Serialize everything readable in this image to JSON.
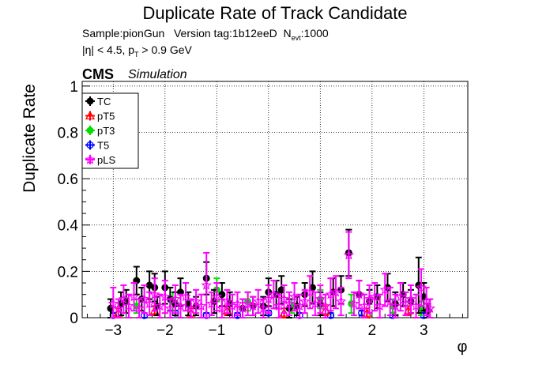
{
  "header": {
    "title": "Duplicate Rate of Track Candidate",
    "sample_line": {
      "sample": "Sample:pionGun",
      "version": "Version tag:1b12eeD",
      "nevt_label": "N",
      "nevt_sub": "evt",
      "nevt_value": ":1000"
    },
    "cut_line": {
      "eta_cut": "|η| < 4.5, p",
      "pt_sub": "T",
      "pt_cut": " > 0.9 GeV"
    },
    "cms": "CMS",
    "simulation": "Simulation"
  },
  "chart_data": {
    "type": "scatter",
    "title": "Duplicate Rate of Track Candidate",
    "xlabel": "φ",
    "ylabel": "Duplicate Rate",
    "xlim": [
      -3.6,
      3.85
    ],
    "ylim": [
      0,
      1.02
    ],
    "xticks": [
      -3,
      -2,
      -1,
      0,
      1,
      2,
      3
    ],
    "xtick_labels": [
      "−3",
      "−2",
      "−1",
      "0",
      "1",
      "2",
      "3"
    ],
    "yticks": [
      0,
      0.2,
      0.4,
      0.6,
      0.8,
      1
    ],
    "ytick_labels": [
      "0",
      "0.2",
      "0.4",
      "0.6",
      "0.8",
      "1"
    ],
    "grid": true,
    "legend_position": "top-left",
    "series": [
      {
        "name": "TC",
        "color": "#000000",
        "marker": "circle-filled",
        "points": [
          {
            "x": -3.05,
            "y": 0.04,
            "err": 0.04
          },
          {
            "x": -2.85,
            "y": 0.06,
            "err": 0.05
          },
          {
            "x": -2.75,
            "y": 0.07,
            "err": 0.05
          },
          {
            "x": -2.55,
            "y": 0.16,
            "err": 0.06
          },
          {
            "x": -2.45,
            "y": 0.08,
            "err": 0.05
          },
          {
            "x": -2.3,
            "y": 0.14,
            "err": 0.06
          },
          {
            "x": -2.2,
            "y": 0.13,
            "err": 0.06
          },
          {
            "x": -2.15,
            "y": 0.05,
            "err": 0.04
          },
          {
            "x": -2.0,
            "y": 0.13,
            "err": 0.07
          },
          {
            "x": -1.9,
            "y": 0.08,
            "err": 0.05
          },
          {
            "x": -1.8,
            "y": 0.06,
            "err": 0.05
          },
          {
            "x": -1.7,
            "y": 0.11,
            "err": 0.06
          },
          {
            "x": -1.55,
            "y": 0.06,
            "err": 0.05
          },
          {
            "x": -1.4,
            "y": 0.05,
            "err": 0.04
          },
          {
            "x": -1.2,
            "y": 0.17,
            "err": 0.07
          },
          {
            "x": -1.05,
            "y": 0.07,
            "err": 0.05
          },
          {
            "x": -0.9,
            "y": 0.1,
            "err": 0.05
          },
          {
            "x": -0.75,
            "y": 0.06,
            "err": 0.05
          },
          {
            "x": -0.5,
            "y": 0.04,
            "err": 0.04
          },
          {
            "x": -0.3,
            "y": 0.05,
            "err": 0.04
          },
          {
            "x": -0.1,
            "y": 0.05,
            "err": 0.04
          },
          {
            "x": 0.0,
            "y": 0.11,
            "err": 0.06
          },
          {
            "x": 0.15,
            "y": 0.1,
            "err": 0.06
          },
          {
            "x": 0.25,
            "y": 0.12,
            "err": 0.06
          },
          {
            "x": 0.4,
            "y": 0.04,
            "err": 0.04
          },
          {
            "x": 0.55,
            "y": 0.05,
            "err": 0.04
          },
          {
            "x": 0.7,
            "y": 0.1,
            "err": 0.05
          },
          {
            "x": 0.85,
            "y": 0.13,
            "err": 0.07
          },
          {
            "x": 1.0,
            "y": 0.06,
            "err": 0.05
          },
          {
            "x": 1.25,
            "y": 0.11,
            "err": 0.06
          },
          {
            "x": 1.4,
            "y": 0.12,
            "err": 0.06
          },
          {
            "x": 1.55,
            "y": 0.28,
            "err": 0.1
          },
          {
            "x": 1.75,
            "y": 0.1,
            "err": 0.06
          },
          {
            "x": 1.95,
            "y": 0.07,
            "err": 0.05
          },
          {
            "x": 2.1,
            "y": 0.09,
            "err": 0.05
          },
          {
            "x": 2.3,
            "y": 0.13,
            "err": 0.06
          },
          {
            "x": 2.45,
            "y": 0.06,
            "err": 0.05
          },
          {
            "x": 2.6,
            "y": 0.1,
            "err": 0.05
          },
          {
            "x": 2.75,
            "y": 0.07,
            "err": 0.05
          },
          {
            "x": 2.9,
            "y": 0.14,
            "err": 0.12
          },
          {
            "x": 3.0,
            "y": 0.09,
            "err": 0.06
          },
          {
            "x": 3.08,
            "y": 0.03,
            "err": 0.03
          }
        ]
      },
      {
        "name": "pT5",
        "color": "#ff0000",
        "marker": "triangle-open",
        "points": [
          {
            "x": -2.9,
            "y": 0.02,
            "err": 0.02
          },
          {
            "x": -2.2,
            "y": 0.03,
            "err": 0.02
          },
          {
            "x": -1.5,
            "y": 0.02,
            "err": 0.02
          },
          {
            "x": -0.8,
            "y": 0.03,
            "err": 0.02
          },
          {
            "x": 0.3,
            "y": 0.02,
            "err": 0.02
          },
          {
            "x": 1.1,
            "y": 0.03,
            "err": 0.02
          },
          {
            "x": 1.9,
            "y": 0.02,
            "err": 0.02
          },
          {
            "x": 2.7,
            "y": 0.03,
            "err": 0.02
          }
        ]
      },
      {
        "name": "pT3",
        "color": "#00e000",
        "marker": "circle-filled",
        "points": [
          {
            "x": -2.55,
            "y": 0.05,
            "err": 0.03
          },
          {
            "x": -1.85,
            "y": 0.07,
            "err": 0.04
          },
          {
            "x": -1.0,
            "y": 0.12,
            "err": 0.05
          },
          {
            "x": -0.4,
            "y": 0.07,
            "err": 0.04
          },
          {
            "x": 0.45,
            "y": 0.05,
            "err": 0.03
          },
          {
            "x": 1.0,
            "y": 0.08,
            "err": 0.04
          },
          {
            "x": 1.6,
            "y": 0.06,
            "err": 0.04
          },
          {
            "x": 2.4,
            "y": 0.05,
            "err": 0.03
          },
          {
            "x": 2.95,
            "y": 0.04,
            "err": 0.03
          }
        ]
      },
      {
        "name": "T5",
        "color": "#0000ff",
        "marker": "circle-open",
        "points": [
          {
            "x": -3.0,
            "y": 0.01,
            "err": 0.01
          },
          {
            "x": -2.4,
            "y": 0.01,
            "err": 0.01
          },
          {
            "x": -1.8,
            "y": 0.02,
            "err": 0.01
          },
          {
            "x": -1.2,
            "y": 0.01,
            "err": 0.01
          },
          {
            "x": -0.6,
            "y": 0.01,
            "err": 0.01
          },
          {
            "x": 0.0,
            "y": 0.02,
            "err": 0.01
          },
          {
            "x": 0.6,
            "y": 0.01,
            "err": 0.01
          },
          {
            "x": 1.2,
            "y": 0.01,
            "err": 0.01
          },
          {
            "x": 1.8,
            "y": 0.02,
            "err": 0.01
          },
          {
            "x": 2.4,
            "y": 0.01,
            "err": 0.01
          },
          {
            "x": 3.0,
            "y": 0.01,
            "err": 0.01
          }
        ]
      },
      {
        "name": "pLS",
        "color": "#ff00ff",
        "marker": "star-open",
        "points": [
          {
            "x": -3.0,
            "y": 0.06,
            "err": 0.07
          },
          {
            "x": -2.9,
            "y": 0.04,
            "err": 0.04
          },
          {
            "x": -2.8,
            "y": 0.08,
            "err": 0.06
          },
          {
            "x": -2.7,
            "y": 0.05,
            "err": 0.05
          },
          {
            "x": -2.6,
            "y": 0.09,
            "err": 0.06
          },
          {
            "x": -2.5,
            "y": 0.04,
            "err": 0.04
          },
          {
            "x": -2.4,
            "y": 0.08,
            "err": 0.06
          },
          {
            "x": -2.3,
            "y": 0.06,
            "err": 0.05
          },
          {
            "x": -2.2,
            "y": 0.1,
            "err": 0.07
          },
          {
            "x": -2.1,
            "y": 0.05,
            "err": 0.05
          },
          {
            "x": -2.0,
            "y": 0.09,
            "err": 0.07
          },
          {
            "x": -1.9,
            "y": 0.04,
            "err": 0.04
          },
          {
            "x": -1.8,
            "y": 0.08,
            "err": 0.06
          },
          {
            "x": -1.7,
            "y": 0.05,
            "err": 0.05
          },
          {
            "x": -1.6,
            "y": 0.09,
            "err": 0.06
          },
          {
            "x": -1.5,
            "y": 0.04,
            "err": 0.04
          },
          {
            "x": -1.4,
            "y": 0.07,
            "err": 0.05
          },
          {
            "x": -1.3,
            "y": 0.05,
            "err": 0.05
          },
          {
            "x": -1.2,
            "y": 0.14,
            "err": 0.14
          },
          {
            "x": -1.1,
            "y": 0.06,
            "err": 0.05
          },
          {
            "x": -1.0,
            "y": 0.09,
            "err": 0.06
          },
          {
            "x": -0.9,
            "y": 0.04,
            "err": 0.04
          },
          {
            "x": -0.8,
            "y": 0.07,
            "err": 0.05
          },
          {
            "x": -0.7,
            "y": 0.05,
            "err": 0.05
          },
          {
            "x": -0.6,
            "y": 0.06,
            "err": 0.05
          },
          {
            "x": -0.5,
            "y": 0.04,
            "err": 0.04
          },
          {
            "x": -0.4,
            "y": 0.06,
            "err": 0.05
          },
          {
            "x": -0.3,
            "y": 0.05,
            "err": 0.04
          },
          {
            "x": -0.2,
            "y": 0.07,
            "err": 0.05
          },
          {
            "x": -0.1,
            "y": 0.04,
            "err": 0.04
          },
          {
            "x": 0.0,
            "y": 0.08,
            "err": 0.06
          },
          {
            "x": 0.1,
            "y": 0.1,
            "err": 0.06
          },
          {
            "x": 0.2,
            "y": 0.05,
            "err": 0.05
          },
          {
            "x": 0.3,
            "y": 0.08,
            "err": 0.06
          },
          {
            "x": 0.4,
            "y": 0.06,
            "err": 0.05
          },
          {
            "x": 0.5,
            "y": 0.09,
            "err": 0.06
          },
          {
            "x": 0.6,
            "y": 0.05,
            "err": 0.05
          },
          {
            "x": 0.7,
            "y": 0.07,
            "err": 0.05
          },
          {
            "x": 0.8,
            "y": 0.11,
            "err": 0.07
          },
          {
            "x": 0.9,
            "y": 0.06,
            "err": 0.05
          },
          {
            "x": 1.0,
            "y": 0.08,
            "err": 0.06
          },
          {
            "x": 1.1,
            "y": 0.05,
            "err": 0.05
          },
          {
            "x": 1.2,
            "y": 0.1,
            "err": 0.07
          },
          {
            "x": 1.3,
            "y": 0.11,
            "err": 0.07
          },
          {
            "x": 1.4,
            "y": 0.07,
            "err": 0.06
          },
          {
            "x": 1.55,
            "y": 0.27,
            "err": 0.1
          },
          {
            "x": 1.65,
            "y": 0.06,
            "err": 0.05
          },
          {
            "x": 1.75,
            "y": 0.1,
            "err": 0.06
          },
          {
            "x": 1.85,
            "y": 0.05,
            "err": 0.05
          },
          {
            "x": 1.95,
            "y": 0.08,
            "err": 0.06
          },
          {
            "x": 2.05,
            "y": 0.09,
            "err": 0.06
          },
          {
            "x": 2.15,
            "y": 0.05,
            "err": 0.05
          },
          {
            "x": 2.25,
            "y": 0.12,
            "err": 0.07
          },
          {
            "x": 2.35,
            "y": 0.07,
            "err": 0.06
          },
          {
            "x": 2.45,
            "y": 0.05,
            "err": 0.05
          },
          {
            "x": 2.55,
            "y": 0.09,
            "err": 0.06
          },
          {
            "x": 2.65,
            "y": 0.06,
            "err": 0.05
          },
          {
            "x": 2.75,
            "y": 0.08,
            "err": 0.06
          },
          {
            "x": 2.85,
            "y": 0.05,
            "err": 0.05
          },
          {
            "x": 2.95,
            "y": 0.13,
            "err": 0.08
          },
          {
            "x": 3.05,
            "y": 0.07,
            "err": 0.06
          },
          {
            "x": 3.12,
            "y": 0.04,
            "err": 0.04
          }
        ]
      }
    ]
  }
}
